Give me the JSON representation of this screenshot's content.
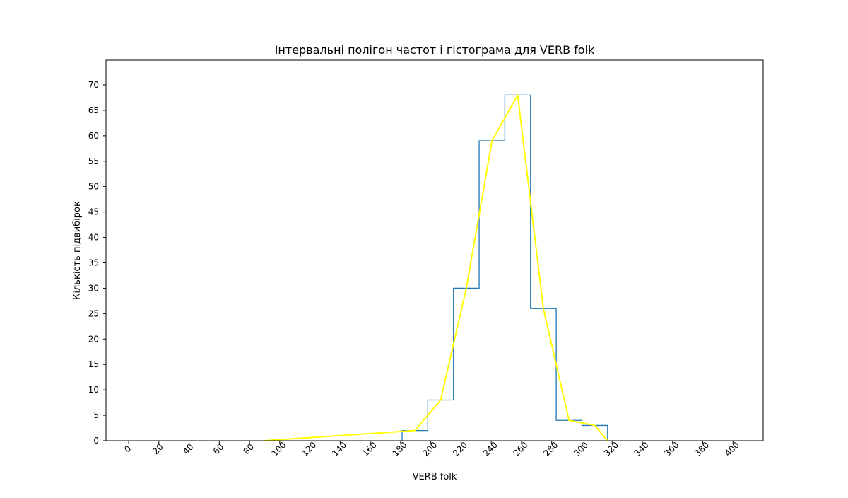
{
  "chart_data": {
    "type": "histogram",
    "title": "Інтервальні полігон частот і гістограма для VERB folk",
    "xlabel": "VERB folk",
    "ylabel": "Кількість підвибірок",
    "xlim": [
      -15,
      420
    ],
    "ylim": [
      0,
      70
    ],
    "x_ticks": [
      "0",
      "20",
      "40",
      "60",
      "80",
      "100",
      "120",
      "140",
      "160",
      "180",
      "200",
      "220",
      "240",
      "260",
      "280",
      "300",
      "320",
      "340",
      "360",
      "380",
      "400"
    ],
    "y_ticks": [
      "0",
      "5",
      "10",
      "15",
      "20",
      "25",
      "30",
      "35",
      "40",
      "45",
      "50",
      "55",
      "60",
      "65",
      "70"
    ],
    "histogram": {
      "name": "histogram",
      "color": "#1f77b4",
      "bin_edges": [
        181,
        198,
        215,
        232,
        249,
        266,
        283,
        300,
        317
      ],
      "counts": [
        2,
        8,
        30,
        59,
        68,
        26,
        4,
        3
      ]
    },
    "polygon": {
      "name": "frequency polygon",
      "color": "#ffff00",
      "x": [
        90,
        189.5,
        206.5,
        223.5,
        240.5,
        257.5,
        274.5,
        291.5,
        308.5,
        317
      ],
      "y": [
        0,
        2,
        8,
        30,
        59,
        68,
        26,
        4,
        3,
        0
      ]
    }
  }
}
